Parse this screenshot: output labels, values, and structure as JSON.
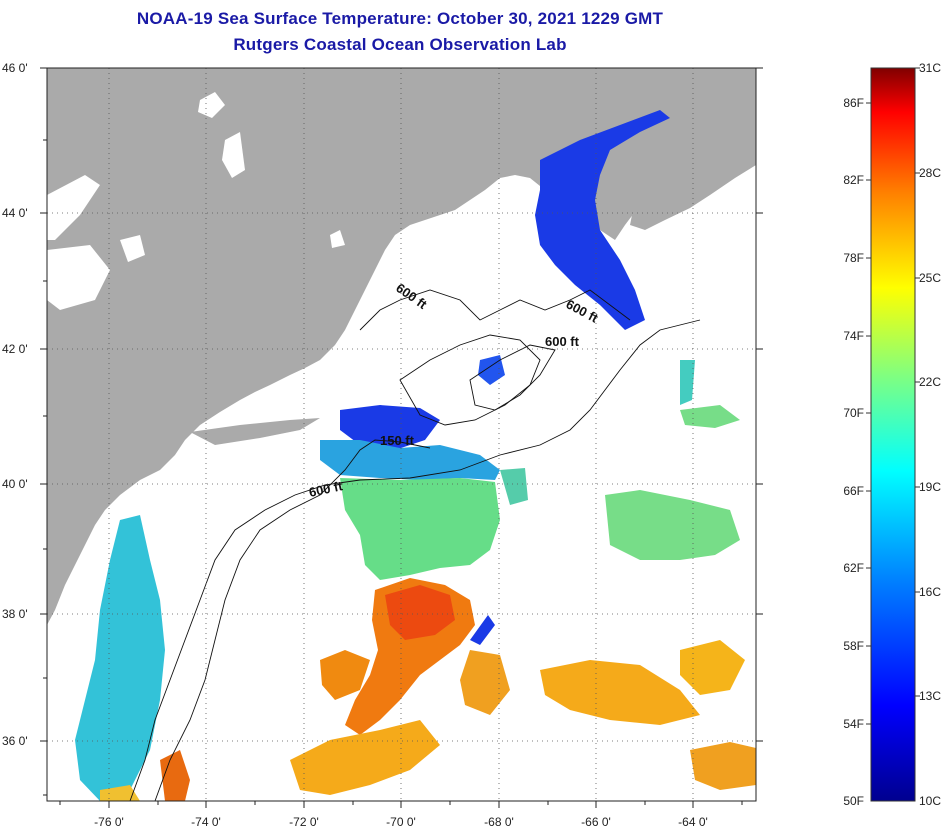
{
  "header": {
    "title": "NOAA-19 Sea Surface Temperature:  October 30, 2021 1229 GMT",
    "subtitle": "Rutgers Coastal Ocean Observation Lab"
  },
  "map": {
    "lat_labels": [
      "46 0'",
      "44 0'",
      "42 0'",
      "40 0'",
      "38 0'",
      "36 0'"
    ],
    "lon_labels": [
      "-76 0'",
      "-74 0'",
      "-72 0'",
      "-70 0'",
      "-68 0'",
      "-66 0'",
      "-64 0'"
    ],
    "contour_labels": [
      "600 ft",
      "600 ft",
      "600 ft",
      "150 ft",
      "600 ft"
    ],
    "colors": {
      "land": "#aaaaaa",
      "cloud": "#ffffff",
      "cold": "#1a3ae6",
      "cool": "#22aadd",
      "mid": "#66dd88",
      "warm": "#f07a10",
      "warm2": "#f5aa1a"
    }
  },
  "colorbar": {
    "fahrenheit": [
      "86F",
      "82F",
      "78F",
      "74F",
      "70F",
      "66F",
      "62F",
      "58F",
      "54F",
      "50F"
    ],
    "celsius": [
      "31C",
      "28C",
      "25C",
      "22C",
      "19C",
      "16C",
      "13C",
      "10C"
    ]
  }
}
